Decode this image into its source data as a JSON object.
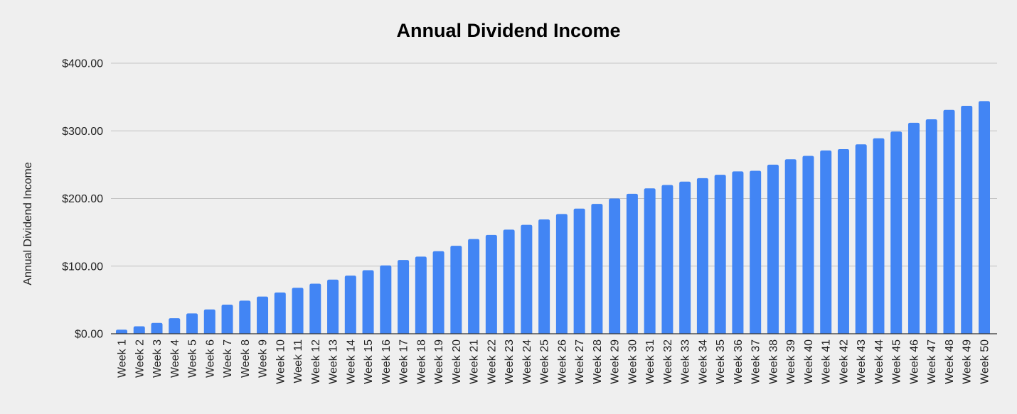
{
  "chart_data": {
    "type": "bar",
    "title": "Annual Dividend Income",
    "xlabel": "",
    "ylabel": "Annual Dividend Income",
    "ylim": [
      0,
      400
    ],
    "yticks": [
      "$0.00",
      "$100.00",
      "$200.00",
      "$300.00",
      "$400.00"
    ],
    "ytick_values": [
      0,
      100,
      200,
      300,
      400
    ],
    "grid": true,
    "legend": "none",
    "bar_color": "#4285f4",
    "categories": [
      "Week 1",
      "Week 2",
      "Week 3",
      "Week 4",
      "Week 5",
      "Week 6",
      "Week 7",
      "Week 8",
      "Week 9",
      "Week 10",
      "Week 11",
      "Week 12",
      "Week 13",
      "Week 14",
      "Week 15",
      "Week 16",
      "Week 17",
      "Week 18",
      "Week 19",
      "Week 20",
      "Week 21",
      "Week 22",
      "Week 23",
      "Week 24",
      "Week 25",
      "Week 26",
      "Week 27",
      "Week 28",
      "Week 29",
      "Week 30",
      "Week 31",
      "Week 32",
      "Week 33",
      "Week 34",
      "Week 35",
      "Week 36",
      "Week 37",
      "Week 38",
      "Week 39",
      "Week 40",
      "Week 41",
      "Week 42",
      "Week 43",
      "Week 44",
      "Week 45",
      "Week 46",
      "Week 47",
      "Week 48",
      "Week 49",
      "Week 50"
    ],
    "values": [
      6,
      11,
      16,
      23,
      30,
      36,
      43,
      49,
      55,
      61,
      68,
      74,
      80,
      86,
      94,
      101,
      109,
      114,
      122,
      130,
      140,
      146,
      154,
      161,
      169,
      177,
      185,
      192,
      200,
      207,
      215,
      220,
      225,
      230,
      235,
      240,
      241,
      250,
      258,
      263,
      271,
      273,
      280,
      289,
      299,
      312,
      317,
      331,
      337,
      344
    ]
  }
}
